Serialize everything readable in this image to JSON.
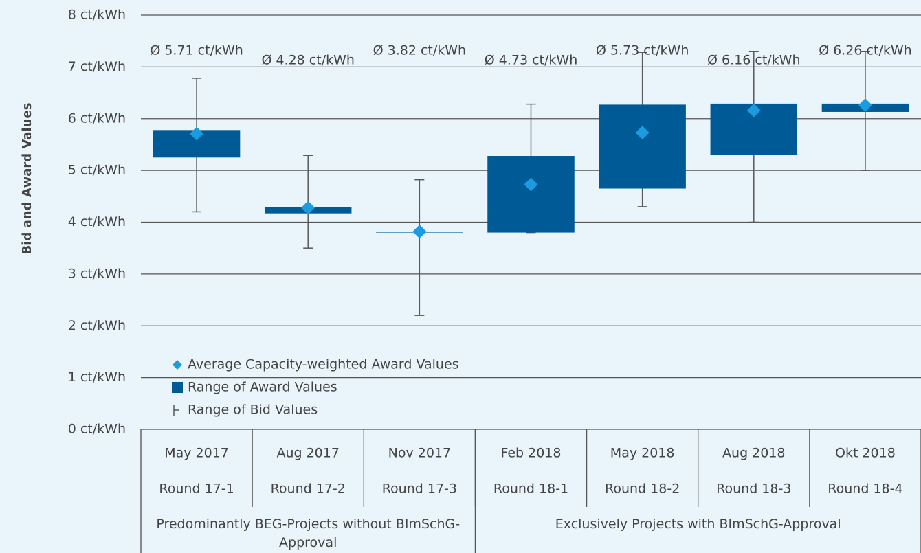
{
  "chart_data": {
    "type": "range-box",
    "y_label": "Bid and Award Values",
    "categories": [
      "May 2017",
      "Aug 2017",
      "Nov 2017",
      "Feb 2018",
      "May 2018",
      "Aug 2018",
      "Okt 2018"
    ],
    "rounds": [
      "Round 17-1",
      "Round 17-2",
      "Round 17-3",
      "Round 18-1",
      "Round 18-2",
      "Round 18-3",
      "Round 18-4"
    ],
    "groups": [
      {
        "label": "Predominantly BEG-Projects without BImSchG-Approval",
        "size": 3
      },
      {
        "label": "Exclusively Projects with BImSchG-Approval",
        "size": 4
      }
    ],
    "series": [
      {
        "name": "Average Capacity-weighted Award Values",
        "color": "#1b9be0",
        "values": [
          5.71,
          4.28,
          3.82,
          4.73,
          5.73,
          6.16,
          6.26
        ],
        "value_labels": [
          "Ø 5.71 ct/kWh",
          "Ø 4.28 ct/kWh",
          "Ø 3.82 ct/kWh",
          "Ø 4.73 ct/kWh",
          "Ø 5.73 ct/kWh",
          "Ø 6.16 ct/kWh",
          "Ø 6.26 ct/kWh"
        ]
      },
      {
        "name": "Range of Award Values",
        "color": "#005a96",
        "low": [
          5.25,
          4.17,
          3.8,
          3.8,
          4.65,
          5.3,
          6.13
        ],
        "high": [
          5.78,
          4.29,
          3.82,
          5.28,
          6.27,
          6.29,
          6.29
        ]
      },
      {
        "name": "Range of Bid Values",
        "color": "#595959",
        "low": [
          4.2,
          3.5,
          2.2,
          3.8,
          4.3,
          4.0,
          5.0
        ],
        "high": [
          6.78,
          5.29,
          4.82,
          6.28,
          7.28,
          7.3,
          7.3
        ]
      }
    ],
    "ylim": [
      0,
      8
    ],
    "yticks": [
      {
        "value": 0,
        "label": "0 ct/kWh"
      },
      {
        "value": 1,
        "label": "1 ct/kWh"
      },
      {
        "value": 2,
        "label": "2 ct/kWh"
      },
      {
        "value": 3,
        "label": "3 ct/kWh"
      },
      {
        "value": 4,
        "label": "4 ct/kWh"
      },
      {
        "value": 5,
        "label": "5 ct/kWh"
      },
      {
        "value": 6,
        "label": "6 ct/kWh"
      },
      {
        "value": 7,
        "label": "7 ct/kWh"
      },
      {
        "value": 8,
        "label": "8 ct/kWh"
      }
    ],
    "grid": true
  }
}
